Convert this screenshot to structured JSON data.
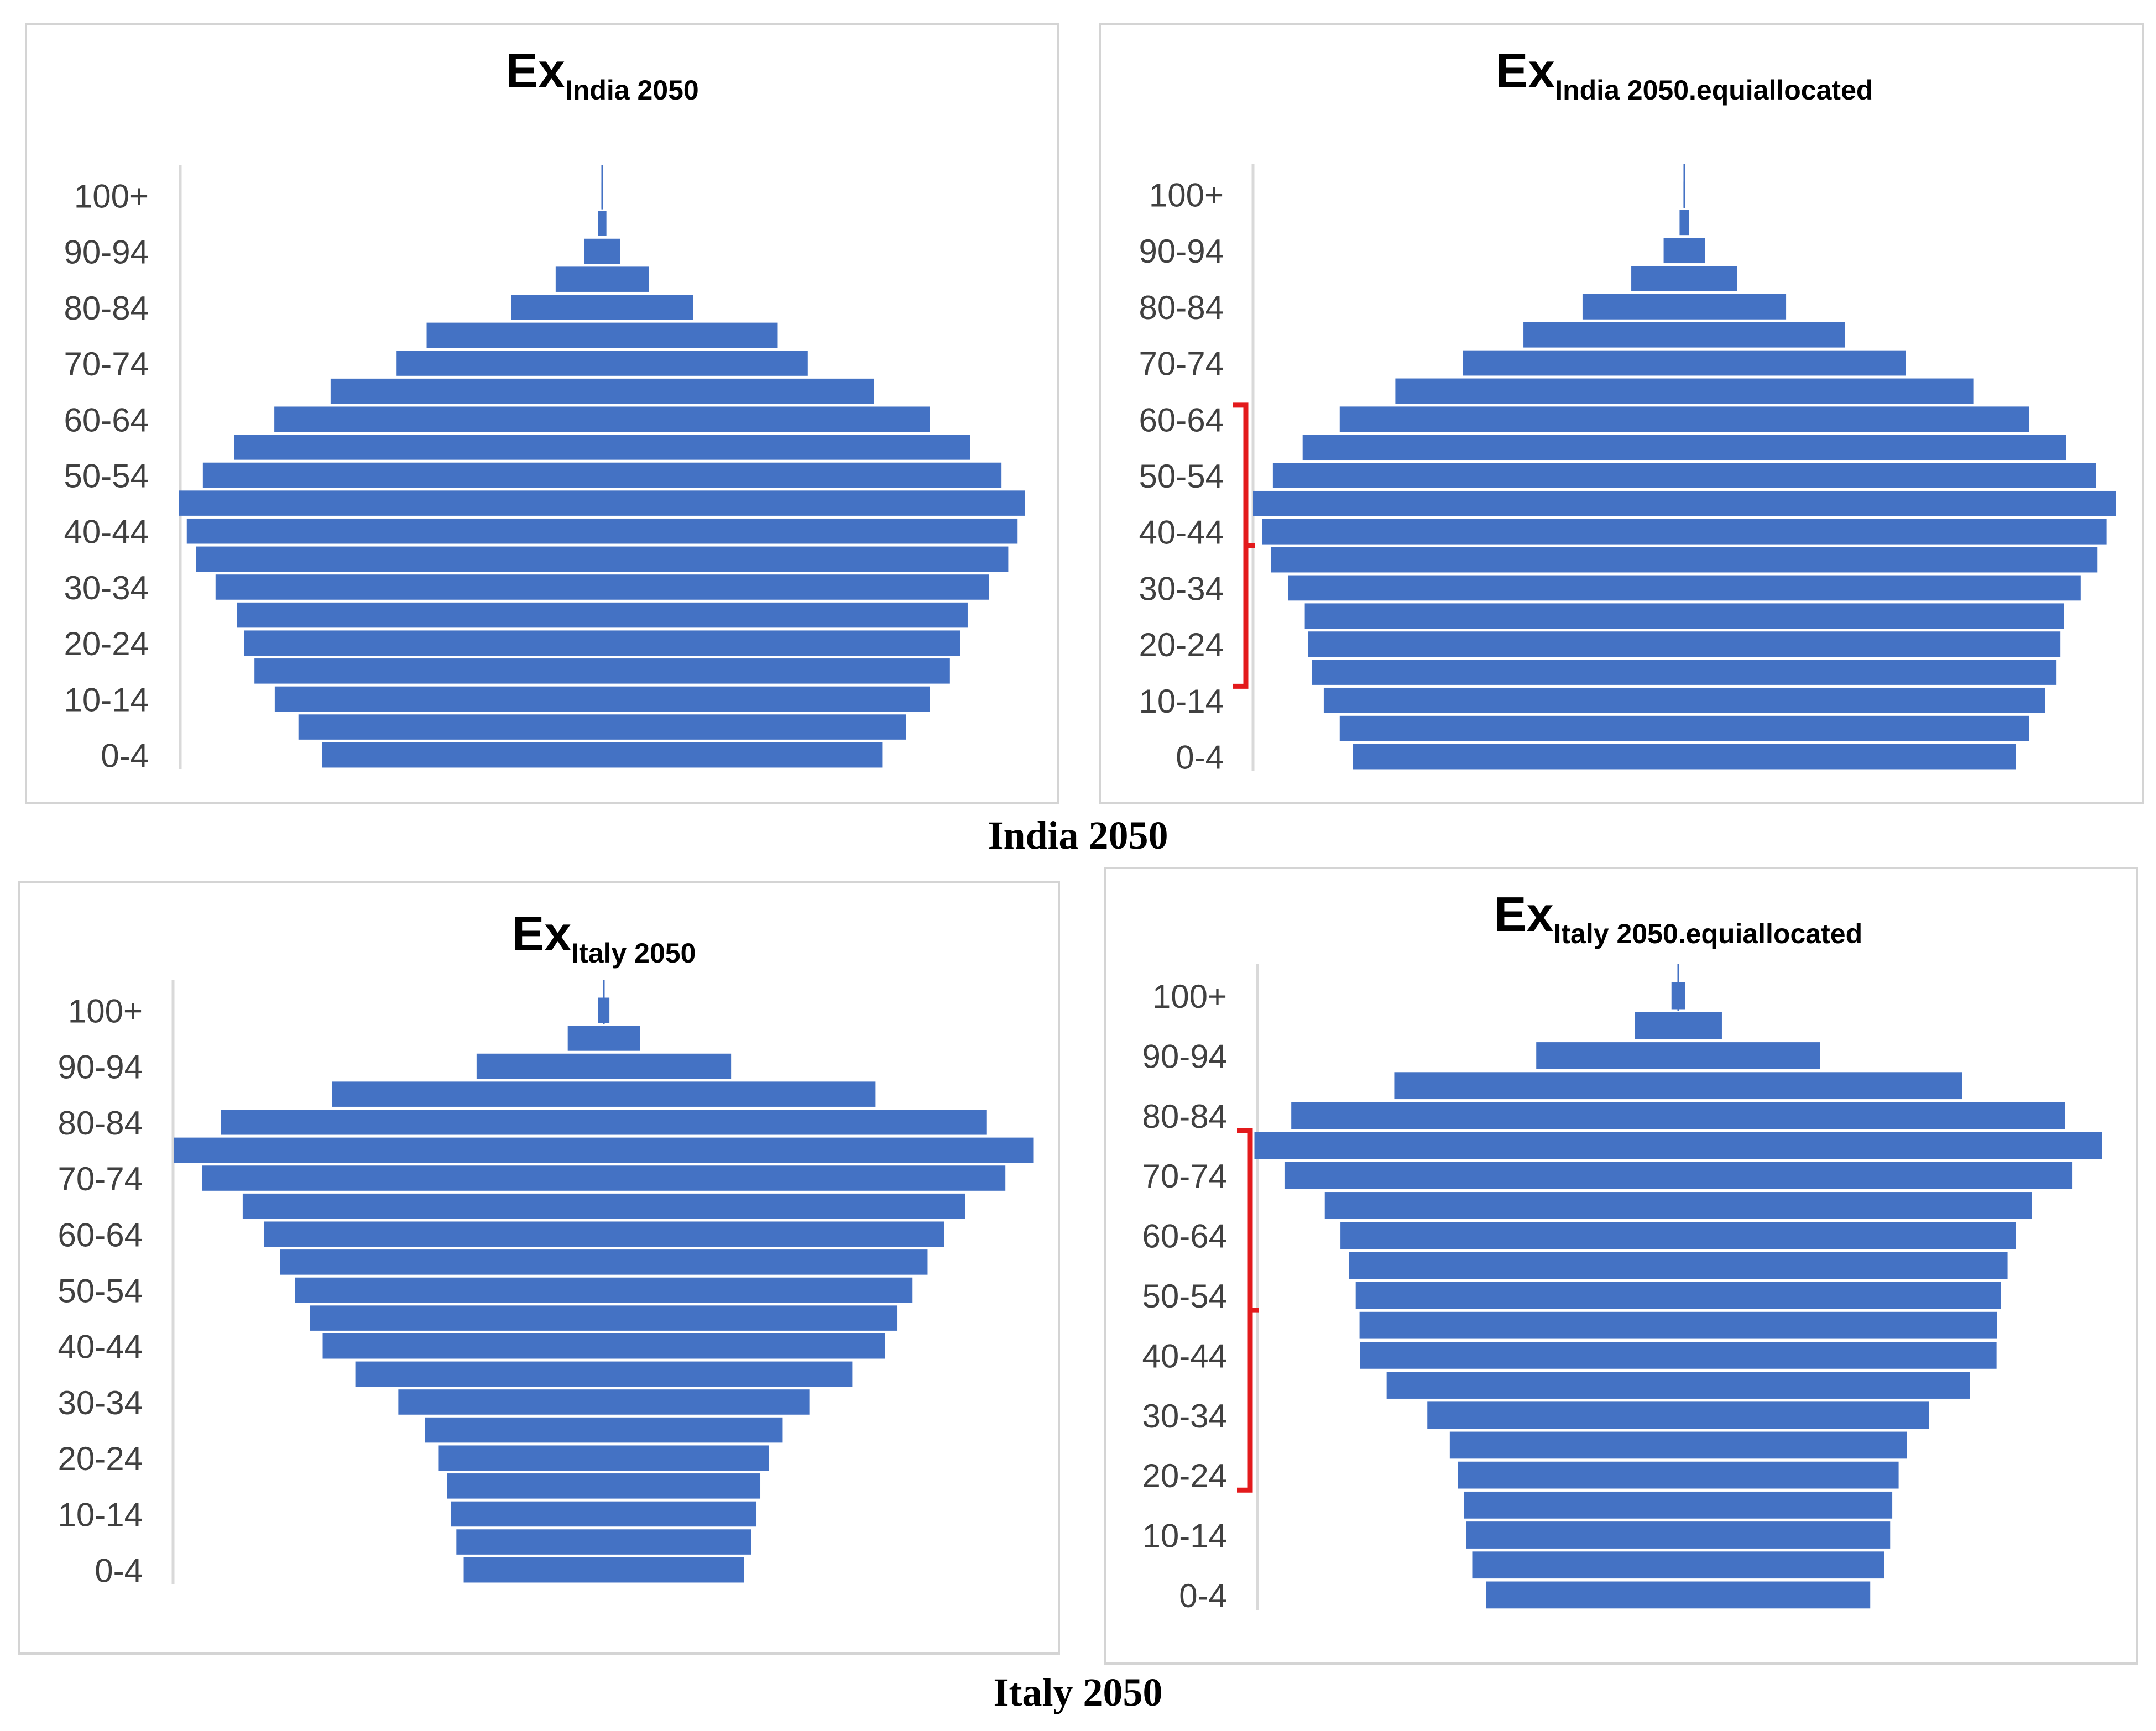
{
  "captions": {
    "top": "India 2050",
    "bottom": "Italy 2050"
  },
  "colors": {
    "bar": "#4472C4",
    "axis": "#d9d9d9",
    "bracket": "#e31a1c"
  },
  "chart_data": [
    {
      "type": "bar",
      "orientation": "horizontal-population-pyramid",
      "title": "Ex",
      "title_sub": "India 2050",
      "categories": [
        "0-4",
        "5-9",
        "10-14",
        "15-19",
        "20-24",
        "25-29",
        "30-34",
        "35-39",
        "40-44",
        "45-49",
        "50-54",
        "55-59",
        "60-64",
        "65-69",
        "70-74",
        "75-79",
        "80-84",
        "85-89",
        "90-94",
        "95-99",
        "100+"
      ],
      "tick_labels": [
        "0-4",
        "10-14",
        "20-24",
        "30-34",
        "40-44",
        "50-54",
        "60-64",
        "70-74",
        "80-84",
        "90-94",
        "100+"
      ],
      "values": [
        0.662,
        0.718,
        0.774,
        0.822,
        0.847,
        0.864,
        0.914,
        0.96,
        0.982,
        1.0,
        0.944,
        0.87,
        0.775,
        0.642,
        0.486,
        0.415,
        0.215,
        0.11,
        0.042,
        0.01,
        0.002
      ],
      "highlight_bracket": null,
      "grid": false,
      "legend": "none"
    },
    {
      "type": "bar",
      "orientation": "horizontal-population-pyramid",
      "title": "Ex",
      "title_sub": "India 2050.equiallocated",
      "categories": [
        "0-4",
        "5-9",
        "10-14",
        "15-19",
        "20-24",
        "25-29",
        "30-34",
        "35-39",
        "40-44",
        "45-49",
        "50-54",
        "55-59",
        "60-64",
        "65-69",
        "70-74",
        "75-79",
        "80-84",
        "85-89",
        "90-94",
        "95-99",
        "100+"
      ],
      "tick_labels": [
        "0-4",
        "10-14",
        "20-24",
        "30-34",
        "40-44",
        "50-54",
        "60-64",
        "70-74",
        "80-84",
        "90-94",
        "100+"
      ],
      "values": [
        0.768,
        0.799,
        0.836,
        0.863,
        0.872,
        0.88,
        0.919,
        0.958,
        0.979,
        1.0,
        0.954,
        0.885,
        0.799,
        0.67,
        0.514,
        0.373,
        0.236,
        0.123,
        0.048,
        0.011,
        0.002
      ],
      "highlight_bracket": {
        "from": "15-19",
        "to": "60-64"
      },
      "grid": false,
      "legend": "none"
    },
    {
      "type": "bar",
      "orientation": "horizontal-population-pyramid",
      "title": "Ex",
      "title_sub": "Italy 2050",
      "categories": [
        "0-4",
        "5-9",
        "10-14",
        "15-19",
        "20-24",
        "25-29",
        "30-34",
        "35-39",
        "40-44",
        "45-49",
        "50-54",
        "55-59",
        "60-64",
        "65-69",
        "70-74",
        "75-79",
        "80-84",
        "85-89",
        "90-94",
        "95-99",
        "100+"
      ],
      "tick_labels": [
        "0-4",
        "10-14",
        "20-24",
        "30-34",
        "40-44",
        "50-54",
        "60-64",
        "70-74",
        "80-84",
        "90-94",
        "100+"
      ],
      "values": [
        0.326,
        0.343,
        0.355,
        0.364,
        0.384,
        0.416,
        0.478,
        0.578,
        0.654,
        0.683,
        0.718,
        0.753,
        0.791,
        0.84,
        0.934,
        1.0,
        0.891,
        0.632,
        0.296,
        0.084,
        0.013
      ],
      "highlight_bracket": null,
      "grid": false,
      "legend": "none"
    },
    {
      "type": "bar",
      "orientation": "horizontal-population-pyramid",
      "title": "Ex",
      "title_sub": "Italy 2050.equiallocated",
      "categories": [
        "0-4",
        "5-9",
        "10-14",
        "15-19",
        "20-24",
        "25-29",
        "30-34",
        "35-39",
        "40-44",
        "45-49",
        "50-54",
        "55-59",
        "60-64",
        "65-69",
        "70-74",
        "75-79",
        "80-84",
        "85-89",
        "90-94",
        "95-99",
        "100+"
      ],
      "tick_labels": [
        "0-4",
        "10-14",
        "20-24",
        "30-34",
        "40-44",
        "50-54",
        "60-64",
        "70-74",
        "80-84",
        "90-94",
        "100+"
      ],
      "values": [
        0.453,
        0.486,
        0.5,
        0.505,
        0.52,
        0.539,
        0.592,
        0.688,
        0.751,
        0.752,
        0.761,
        0.777,
        0.797,
        0.834,
        0.929,
        1.0,
        0.913,
        0.67,
        0.335,
        0.103,
        0.016
      ],
      "highlight_bracket": {
        "from": "20-24",
        "to": "75-79"
      },
      "grid": false,
      "legend": "none"
    }
  ]
}
